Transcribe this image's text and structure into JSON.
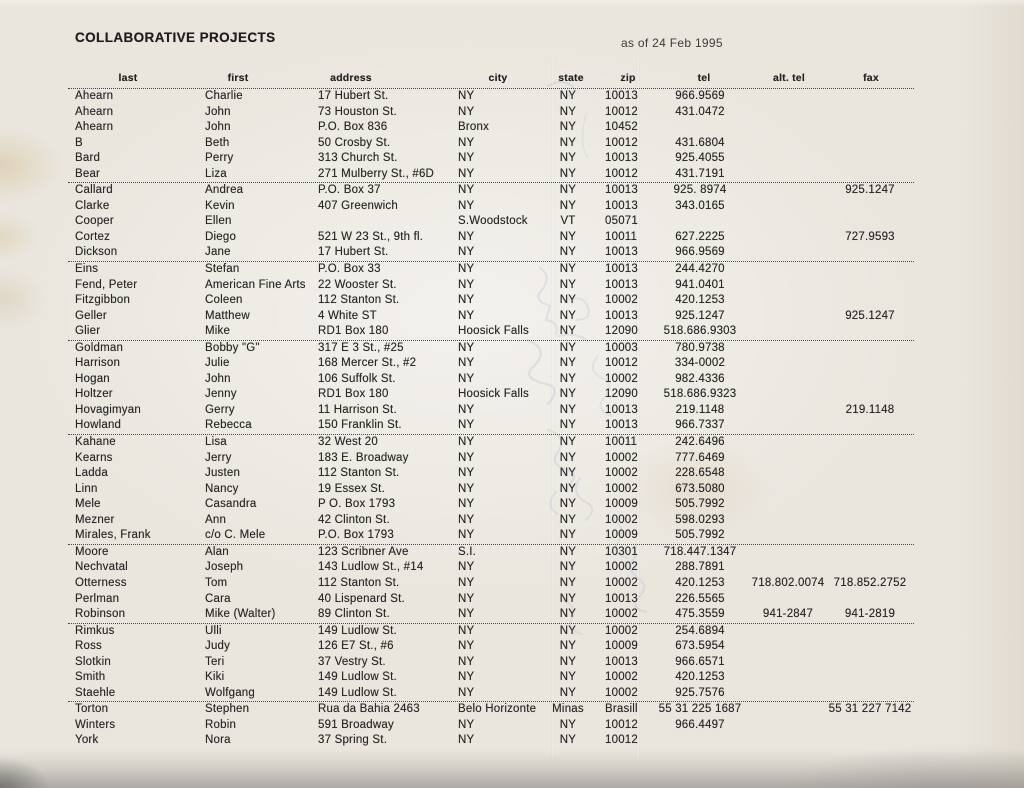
{
  "document": {
    "title": "COLLABORATIVE PROJECTS",
    "date_label": "as of 24 Feb 1995"
  },
  "colors": {
    "paper": "#eae6de",
    "ink": "#262626",
    "rule_line": "#4a4a4a",
    "pencil_scribble": "#6f8fbc"
  },
  "table": {
    "columns": [
      {
        "key": "last",
        "label": "last"
      },
      {
        "key": "first",
        "label": "first"
      },
      {
        "key": "address",
        "label": "address"
      },
      {
        "key": "city",
        "label": "city"
      },
      {
        "key": "state",
        "label": "state"
      },
      {
        "key": "zip",
        "label": "zip"
      },
      {
        "key": "tel",
        "label": "tel"
      },
      {
        "key": "alt_tel",
        "label": "alt. tel"
      },
      {
        "key": "fax",
        "label": "fax"
      }
    ],
    "groups": [
      {
        "rows": [
          {
            "last": "Ahearn",
            "first": "Charlie",
            "address": "17 Hubert St.",
            "city": "NY",
            "state": "NY",
            "zip": "10013",
            "tel": "966.9569",
            "alt_tel": "",
            "fax": ""
          },
          {
            "last": "Ahearn",
            "first": "John",
            "address": "73 Houston St.",
            "city": "NY",
            "state": "NY",
            "zip": "10012",
            "tel": "431.0472",
            "alt_tel": "",
            "fax": ""
          },
          {
            "last": "Ahearn",
            "first": "John",
            "address": "P.O. Box 836",
            "city": "Bronx",
            "state": "NY",
            "zip": "10452",
            "tel": "",
            "alt_tel": "",
            "fax": ""
          },
          {
            "last": "B",
            "first": "Beth",
            "address": "50 Crosby St.",
            "city": "NY",
            "state": "NY",
            "zip": "10012",
            "tel": "431.6804",
            "alt_tel": "",
            "fax": ""
          },
          {
            "last": "Bard",
            "first": "Perry",
            "address": "313 Church St.",
            "city": "NY",
            "state": "NY",
            "zip": "10013",
            "tel": "925.4055",
            "alt_tel": "",
            "fax": ""
          },
          {
            "last": "Bear",
            "first": "Liza",
            "address": "271 Mulberry St., #6D",
            "city": "NY",
            "state": "NY",
            "zip": "10012",
            "tel": "431.7191",
            "alt_tel": "",
            "fax": ""
          }
        ]
      },
      {
        "rows": [
          {
            "last": "Callard",
            "first": "Andrea",
            "address": "P.O. Box 37",
            "city": "NY",
            "state": "NY",
            "zip": "10013",
            "tel": "925. 8974",
            "alt_tel": "",
            "fax": "925.1247"
          },
          {
            "last": "Clarke",
            "first": "Kevin",
            "address": "407 Greenwich",
            "city": "NY",
            "state": "NY",
            "zip": "10013",
            "tel": "343.0165",
            "alt_tel": "",
            "fax": ""
          },
          {
            "last": "Cooper",
            "first": "Ellen",
            "address": "",
            "city": "S.Woodstock",
            "state": "VT",
            "zip": "05071",
            "tel": "",
            "alt_tel": "",
            "fax": ""
          },
          {
            "last": "Cortez",
            "first": "Diego",
            "address": "521 W 23 St., 9th fl.",
            "city": "NY",
            "state": "NY",
            "zip": "10011",
            "tel": "627.2225",
            "alt_tel": "",
            "fax": "727.9593"
          },
          {
            "last": "Dickson",
            "first": "Jane",
            "address": "17 Hubert St.",
            "city": "NY",
            "state": "NY",
            "zip": "10013",
            "tel": "966.9569",
            "alt_tel": "",
            "fax": ""
          }
        ]
      },
      {
        "rows": [
          {
            "last": "Eins",
            "first": "Stefan",
            "address": "P.O. Box 33",
            "city": "NY",
            "state": "NY",
            "zip": "10013",
            "tel": "244.4270",
            "alt_tel": "",
            "fax": ""
          },
          {
            "last": "Fend, Peter",
            "first": "American Fine Arts",
            "address": "22 Wooster St.",
            "city": "NY",
            "state": "NY",
            "zip": "10013",
            "tel": "941.0401",
            "alt_tel": "",
            "fax": ""
          },
          {
            "last": "Fitzgibbon",
            "first": "Coleen",
            "address": "112 Stanton St.",
            "city": "NY",
            "state": "NY",
            "zip": "10002",
            "tel": "420.1253",
            "alt_tel": "",
            "fax": ""
          },
          {
            "last": "Geller",
            "first": "Matthew",
            "address": "4 White ST",
            "city": "NY",
            "state": "NY",
            "zip": "10013",
            "tel": "925.1247",
            "alt_tel": "",
            "fax": "925.1247"
          },
          {
            "last": "Glier",
            "first": "Mike",
            "address": "RD1 Box 180",
            "city": "Hoosick Falls",
            "state": "NY",
            "zip": "12090",
            "tel": "518.686.9303",
            "alt_tel": "",
            "fax": ""
          }
        ]
      },
      {
        "rows": [
          {
            "last": "Goldman",
            "first": "Bobby \"G\"",
            "address": "317 E 3 St., #25",
            "city": "NY",
            "state": "NY",
            "zip": "10003",
            "tel": "780.9738",
            "alt_tel": "",
            "fax": ""
          },
          {
            "last": "Harrison",
            "first": "Julie",
            "address": "168 Mercer St., #2",
            "city": "NY",
            "state": "NY",
            "zip": "10012",
            "tel": "334-0002",
            "alt_tel": "",
            "fax": ""
          },
          {
            "last": "Hogan",
            "first": "John",
            "address": "106 Suffolk St.",
            "city": "NY",
            "state": "NY",
            "zip": "10002",
            "tel": "982.4336",
            "alt_tel": "",
            "fax": ""
          },
          {
            "last": "Holtzer",
            "first": "Jenny",
            "address": "RD1 Box 180",
            "city": "Hoosick Falls",
            "state": "NY",
            "zip": "12090",
            "tel": "518.686.9323",
            "alt_tel": "",
            "fax": ""
          },
          {
            "last": "Hovagimyan",
            "first": "Gerry",
            "address": "11 Harrison St.",
            "city": "NY",
            "state": "NY",
            "zip": "10013",
            "tel": "219.1148",
            "alt_tel": "",
            "fax": "219.1148"
          },
          {
            "last": "Howland",
            "first": "Rebecca",
            "address": "150 Franklin St.",
            "city": "NY",
            "state": "NY",
            "zip": "10013",
            "tel": "966.7337",
            "alt_tel": "",
            "fax": ""
          }
        ]
      },
      {
        "rows": [
          {
            "last": "Kahane",
            "first": "Lisa",
            "address": "32 West 20",
            "city": "NY",
            "state": "NY",
            "zip": "10011",
            "tel": "242.6496",
            "alt_tel": "",
            "fax": ""
          },
          {
            "last": "Kearns",
            "first": "Jerry",
            "address": "183 E. Broadway",
            "city": "NY",
            "state": "NY",
            "zip": "10002",
            "tel": "777.6469",
            "alt_tel": "",
            "fax": ""
          },
          {
            "last": "Ladda",
            "first": "Justen",
            "address": "112 Stanton St.",
            "city": "NY",
            "state": "NY",
            "zip": "10002",
            "tel": "228.6548",
            "alt_tel": "",
            "fax": ""
          },
          {
            "last": "Linn",
            "first": "Nancy",
            "address": "19 Essex St.",
            "city": "NY",
            "state": "NY",
            "zip": "10002",
            "tel": "673.5080",
            "alt_tel": "",
            "fax": ""
          },
          {
            "last": "Mele",
            "first": "Casandra",
            "address": "P O. Box 1793",
            "city": "NY",
            "state": "NY",
            "zip": "10009",
            "tel": "505.7992",
            "alt_tel": "",
            "fax": ""
          },
          {
            "last": "Mezner",
            "first": "Ann",
            "address": "42 Clinton St.",
            "city": "NY",
            "state": "NY",
            "zip": "10002",
            "tel": "598.0293",
            "alt_tel": "",
            "fax": ""
          },
          {
            "last": "Mirales, Frank",
            "first": "c/o C. Mele",
            "address": "P.O. Box 1793",
            "city": "NY",
            "state": "NY",
            "zip": "10009",
            "tel": "505.7992",
            "alt_tel": "",
            "fax": ""
          }
        ]
      },
      {
        "rows": [
          {
            "last": "Moore",
            "first": "Alan",
            "address": "123 Scribner Ave",
            "city": "S.I.",
            "state": "NY",
            "zip": "10301",
            "tel": "718.447.1347",
            "alt_tel": "",
            "fax": ""
          },
          {
            "last": "Nechvatal",
            "first": "Joseph",
            "address": "143 Ludlow St., #14",
            "city": "NY",
            "state": "NY",
            "zip": "10002",
            "tel": "288.7891",
            "alt_tel": "",
            "fax": ""
          },
          {
            "last": "Otterness",
            "first": "Tom",
            "address": "112 Stanton St.",
            "city": "NY",
            "state": "NY",
            "zip": "10002",
            "tel": "420.1253",
            "alt_tel": "718.802.0074",
            "fax": "718.852.2752"
          },
          {
            "last": "Perlman",
            "first": "Cara",
            "address": "40 Lispenard St.",
            "city": "NY",
            "state": "NY",
            "zip": "10013",
            "tel": "226.5565",
            "alt_tel": "",
            "fax": ""
          },
          {
            "last": "Robinson",
            "first": "Mike (Walter)",
            "address": "89 Clinton St.",
            "city": "NY",
            "state": "NY",
            "zip": "10002",
            "tel": "475.3559",
            "alt_tel": "941-2847",
            "fax": "941-2819"
          }
        ]
      },
      {
        "rows": [
          {
            "last": "Rimkus",
            "first": "Ulli",
            "address": "149 Ludlow St.",
            "city": "NY",
            "state": "NY",
            "zip": "10002",
            "tel": "254.6894",
            "alt_tel": "",
            "fax": ""
          },
          {
            "last": "Ross",
            "first": "Judy",
            "address": "126 E7 St., #6",
            "city": "NY",
            "state": "NY",
            "zip": "10009",
            "tel": "673.5954",
            "alt_tel": "",
            "fax": ""
          },
          {
            "last": "Slotkin",
            "first": "Teri",
            "address": "37 Vestry St.",
            "city": "NY",
            "state": "NY",
            "zip": "10013",
            "tel": "966.6571",
            "alt_tel": "",
            "fax": ""
          },
          {
            "last": "Smith",
            "first": "Kiki",
            "address": "149 Ludlow St.",
            "city": "NY",
            "state": "NY",
            "zip": "10002",
            "tel": "420.1253",
            "alt_tel": "",
            "fax": ""
          },
          {
            "last": "Staehle",
            "first": "Wolfgang",
            "address": "149 Ludlow St.",
            "city": "NY",
            "state": "NY",
            "zip": "10002",
            "tel": "925.7576",
            "alt_tel": "",
            "fax": ""
          }
        ]
      },
      {
        "rows": [
          {
            "last": "Torton",
            "first": "Stephen",
            "address": "Rua da Bahia 2463",
            "city": "Belo Horizonte",
            "state": "Minas",
            "zip": "Brasill",
            "tel": "55 31 225 1687",
            "alt_tel": "",
            "fax": "55 31 227 7142"
          },
          {
            "last": "Winters",
            "first": "Robin",
            "address": "591 Broadway",
            "city": "NY",
            "state": "NY",
            "zip": "10012",
            "tel": "966.4497",
            "alt_tel": "",
            "fax": ""
          },
          {
            "last": "York",
            "first": "Nora",
            "address": "37 Spring St.",
            "city": "NY",
            "state": "NY",
            "zip": "10012",
            "tel": "",
            "alt_tel": "",
            "fax": ""
          }
        ]
      }
    ]
  }
}
